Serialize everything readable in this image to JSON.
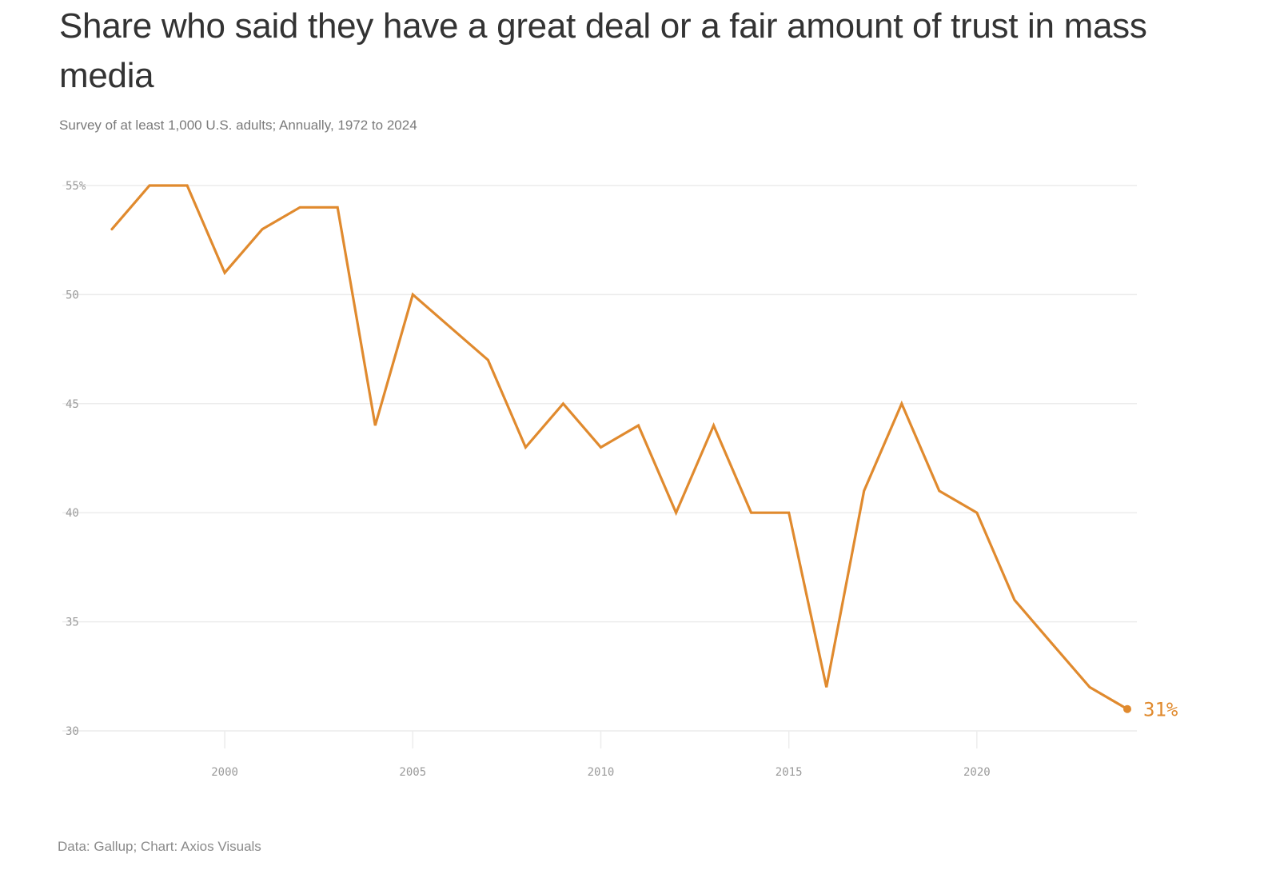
{
  "title": "Share who said they have a great deal or a fair amount of trust in mass media",
  "subtitle": "Survey of at least 1,000 U.S. adults; Annually, 1972 to 2024",
  "source": "Data: Gallup; Chart: Axios Visuals",
  "colors": {
    "line": "#e08a2e",
    "grid": "#ececec",
    "tick_text": "#9a9a9a"
  },
  "chart_data": {
    "type": "line",
    "x": [
      1997,
      1998,
      1999,
      2000,
      2001,
      2002,
      2003,
      2004,
      2005,
      2006,
      2007,
      2008,
      2009,
      2010,
      2011,
      2012,
      2013,
      2014,
      2015,
      2016,
      2017,
      2018,
      2019,
      2020,
      2021,
      2022,
      2023,
      2024
    ],
    "series": [
      {
        "values": [
          53,
          55,
          55,
          51,
          53,
          54,
          54,
          44,
          50,
          48.5,
          47,
          43,
          45,
          43,
          44,
          40,
          44,
          40,
          40,
          32,
          41,
          45,
          41,
          40,
          36,
          34,
          32,
          31
        ]
      }
    ],
    "xlim": [
      1997,
      2024
    ],
    "ylim": [
      30,
      55
    ],
    "y_ticks": [
      30,
      35,
      40,
      45,
      50,
      55
    ],
    "y_tick_labels": [
      "30",
      "35",
      "40",
      "45",
      "50",
      "55%"
    ],
    "x_ticks": [
      2000,
      2005,
      2010,
      2015,
      2020
    ],
    "x_tick_labels": [
      "2000",
      "2005",
      "2010",
      "2015",
      "2020"
    ],
    "end_label": "31%",
    "grid": true,
    "legend": "none"
  }
}
